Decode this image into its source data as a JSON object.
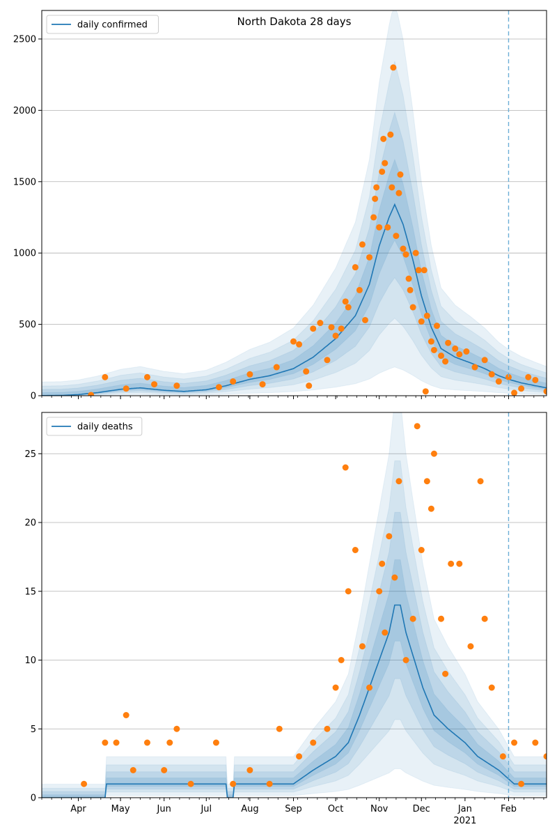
{
  "chart_data": [
    {
      "type": "line",
      "title": "North Dakota 28 days",
      "xlabel": "",
      "ylabel": "",
      "x_start": "2020-03-06",
      "x_end": "2021-02-28",
      "x_ticks": [
        {
          "label": "Apr",
          "date": "2020-04-01"
        },
        {
          "label": "May",
          "date": "2020-05-01"
        },
        {
          "label": "Jun",
          "date": "2020-06-01"
        },
        {
          "label": "Jul",
          "date": "2020-07-01"
        },
        {
          "label": "Aug",
          "date": "2020-08-01"
        },
        {
          "label": "Sep",
          "date": "2020-09-01"
        },
        {
          "label": "Oct",
          "date": "2020-10-01"
        },
        {
          "label": "Nov",
          "date": "2020-11-01"
        },
        {
          "label": "Dec",
          "date": "2020-12-01"
        },
        {
          "label": "Jan",
          "date": "2021-01-01",
          "sublabel": "2021"
        },
        {
          "label": "Feb",
          "date": "2021-02-01"
        }
      ],
      "y_ticks": [
        0,
        500,
        1000,
        1500,
        2000,
        2500
      ],
      "ylim": [
        0,
        2700
      ],
      "grid": "horizontal",
      "vline_date": "2021-02-01",
      "legend_position": "top-left",
      "series": [
        {
          "name": "daily confirmed",
          "color": "#1f77b4",
          "kind": "line"
        },
        {
          "kind": "scatter",
          "color": "#ff7f0e"
        }
      ],
      "curve": [
        [
          "2020-03-06",
          1
        ],
        [
          "2020-03-20",
          2
        ],
        [
          "2020-04-01",
          8
        ],
        [
          "2020-04-15",
          22
        ],
        [
          "2020-05-01",
          45
        ],
        [
          "2020-05-15",
          55
        ],
        [
          "2020-06-01",
          38
        ],
        [
          "2020-06-15",
          30
        ],
        [
          "2020-07-01",
          42
        ],
        [
          "2020-07-15",
          70
        ],
        [
          "2020-08-01",
          115
        ],
        [
          "2020-08-15",
          140
        ],
        [
          "2020-09-01",
          190
        ],
        [
          "2020-09-15",
          270
        ],
        [
          "2020-10-01",
          400
        ],
        [
          "2020-10-15",
          560
        ],
        [
          "2020-10-25",
          780
        ],
        [
          "2020-11-01",
          1050
        ],
        [
          "2020-11-08",
          1250
        ],
        [
          "2020-11-12",
          1340
        ],
        [
          "2020-11-18",
          1200
        ],
        [
          "2020-11-25",
          950
        ],
        [
          "2020-12-01",
          700
        ],
        [
          "2020-12-08",
          480
        ],
        [
          "2020-12-15",
          330
        ],
        [
          "2020-12-25",
          270
        ],
        [
          "2021-01-05",
          230
        ],
        [
          "2021-01-15",
          190
        ],
        [
          "2021-01-25",
          140
        ],
        [
          "2021-02-01",
          115
        ],
        [
          "2021-02-10",
          90
        ],
        [
          "2021-02-20",
          70
        ],
        [
          "2021-02-28",
          55
        ]
      ],
      "points": [
        [
          "2020-04-10",
          5
        ],
        [
          "2020-04-20",
          130
        ],
        [
          "2020-05-05",
          50
        ],
        [
          "2020-05-20",
          130
        ],
        [
          "2020-05-25",
          80
        ],
        [
          "2020-06-10",
          70
        ],
        [
          "2020-07-10",
          60
        ],
        [
          "2020-07-20",
          100
        ],
        [
          "2020-08-01",
          150
        ],
        [
          "2020-08-10",
          80
        ],
        [
          "2020-08-20",
          200
        ],
        [
          "2020-09-01",
          380
        ],
        [
          "2020-09-05",
          360
        ],
        [
          "2020-09-10",
          170
        ],
        [
          "2020-09-12",
          70
        ],
        [
          "2020-09-15",
          470
        ],
        [
          "2020-09-20",
          510
        ],
        [
          "2020-09-25",
          250
        ],
        [
          "2020-09-28",
          480
        ],
        [
          "2020-10-01",
          420
        ],
        [
          "2020-10-05",
          470
        ],
        [
          "2020-10-08",
          660
        ],
        [
          "2020-10-10",
          620
        ],
        [
          "2020-10-15",
          900
        ],
        [
          "2020-10-18",
          740
        ],
        [
          "2020-10-20",
          1060
        ],
        [
          "2020-10-22",
          530
        ],
        [
          "2020-10-25",
          970
        ],
        [
          "2020-10-28",
          1250
        ],
        [
          "2020-10-29",
          1380
        ],
        [
          "2020-10-30",
          1460
        ],
        [
          "2020-11-01",
          1180
        ],
        [
          "2020-11-03",
          1570
        ],
        [
          "2020-11-04",
          1800
        ],
        [
          "2020-11-05",
          1630
        ],
        [
          "2020-11-07",
          1180
        ],
        [
          "2020-11-09",
          1830
        ],
        [
          "2020-11-10",
          1460
        ],
        [
          "2020-11-11",
          2300
        ],
        [
          "2020-11-13",
          1120
        ],
        [
          "2020-11-15",
          1420
        ],
        [
          "2020-11-16",
          1550
        ],
        [
          "2020-11-18",
          1030
        ],
        [
          "2020-11-20",
          990
        ],
        [
          "2020-11-22",
          820
        ],
        [
          "2020-11-23",
          740
        ],
        [
          "2020-11-25",
          620
        ],
        [
          "2020-11-27",
          1000
        ],
        [
          "2020-11-29",
          880
        ],
        [
          "2020-12-01",
          520
        ],
        [
          "2020-12-03",
          880
        ],
        [
          "2020-12-04",
          30
        ],
        [
          "2020-12-05",
          560
        ],
        [
          "2020-12-08",
          380
        ],
        [
          "2020-12-10",
          320
        ],
        [
          "2020-12-12",
          490
        ],
        [
          "2020-12-15",
          280
        ],
        [
          "2020-12-18",
          240
        ],
        [
          "2020-12-20",
          370
        ],
        [
          "2020-12-25",
          330
        ],
        [
          "2020-12-28",
          290
        ],
        [
          "2021-01-02",
          310
        ],
        [
          "2021-01-08",
          200
        ],
        [
          "2021-01-15",
          250
        ],
        [
          "2021-01-20",
          150
        ],
        [
          "2021-01-25",
          100
        ],
        [
          "2021-02-01",
          130
        ],
        [
          "2021-02-05",
          20
        ],
        [
          "2021-02-10",
          50
        ],
        [
          "2021-02-15",
          130
        ],
        [
          "2021-02-20",
          110
        ],
        [
          "2021-02-28",
          30
        ]
      ]
    },
    {
      "type": "line",
      "title": "",
      "xlabel": "",
      "ylabel": "",
      "x_start": "2020-03-06",
      "x_end": "2021-02-28",
      "x_ticks": [
        {
          "label": "Apr",
          "date": "2020-04-01"
        },
        {
          "label": "May",
          "date": "2020-05-01"
        },
        {
          "label": "Jun",
          "date": "2020-06-01"
        },
        {
          "label": "Jul",
          "date": "2020-07-01"
        },
        {
          "label": "Aug",
          "date": "2020-08-01"
        },
        {
          "label": "Sep",
          "date": "2020-09-01"
        },
        {
          "label": "Oct",
          "date": "2020-10-01"
        },
        {
          "label": "Nov",
          "date": "2020-11-01"
        },
        {
          "label": "Dec",
          "date": "2020-12-01"
        },
        {
          "label": "Jan",
          "date": "2021-01-01",
          "sublabel": "2021"
        },
        {
          "label": "Feb",
          "date": "2021-02-01"
        }
      ],
      "y_ticks": [
        0,
        5,
        10,
        15,
        20,
        25
      ],
      "ylim": [
        0,
        28
      ],
      "grid": "horizontal",
      "vline_date": "2021-02-01",
      "legend_position": "top-left",
      "series": [
        {
          "name": "daily deaths",
          "color": "#1f77b4",
          "kind": "line"
        },
        {
          "kind": "scatter",
          "color": "#ff7f0e"
        }
      ],
      "curve": [
        [
          "2020-03-06",
          0
        ],
        [
          "2020-04-20",
          0
        ],
        [
          "2020-04-21",
          1
        ],
        [
          "2020-06-20",
          1
        ],
        [
          "2020-07-15",
          1
        ],
        [
          "2020-07-16",
          0
        ],
        [
          "2020-07-20",
          0
        ],
        [
          "2020-07-21",
          1
        ],
        [
          "2020-09-01",
          1
        ],
        [
          "2020-09-15",
          2
        ],
        [
          "2020-10-01",
          3
        ],
        [
          "2020-10-10",
          4
        ],
        [
          "2020-10-18",
          6
        ],
        [
          "2020-10-25",
          8
        ],
        [
          "2020-11-01",
          10
        ],
        [
          "2020-11-08",
          12
        ],
        [
          "2020-11-12",
          14
        ],
        [
          "2020-11-16",
          14
        ],
        [
          "2020-11-20",
          12
        ],
        [
          "2020-11-26",
          10
        ],
        [
          "2020-12-02",
          8
        ],
        [
          "2020-12-10",
          6
        ],
        [
          "2020-12-20",
          5
        ],
        [
          "2021-01-01",
          4
        ],
        [
          "2021-01-10",
          3
        ],
        [
          "2021-01-25",
          2
        ],
        [
          "2021-02-05",
          1
        ],
        [
          "2021-02-28",
          1
        ]
      ],
      "points": [
        [
          "2020-04-05",
          1
        ],
        [
          "2020-04-20",
          4
        ],
        [
          "2020-04-28",
          4
        ],
        [
          "2020-05-05",
          6
        ],
        [
          "2020-05-10",
          2
        ],
        [
          "2020-05-20",
          4
        ],
        [
          "2020-06-01",
          2
        ],
        [
          "2020-06-05",
          4
        ],
        [
          "2020-06-10",
          5
        ],
        [
          "2020-06-20",
          1
        ],
        [
          "2020-07-08",
          4
        ],
        [
          "2020-07-20",
          1
        ],
        [
          "2020-08-01",
          2
        ],
        [
          "2020-08-15",
          1
        ],
        [
          "2020-08-22",
          5
        ],
        [
          "2020-09-05",
          3
        ],
        [
          "2020-09-15",
          4
        ],
        [
          "2020-09-25",
          5
        ],
        [
          "2020-10-01",
          8
        ],
        [
          "2020-10-05",
          10
        ],
        [
          "2020-10-08",
          24
        ],
        [
          "2020-10-10",
          15
        ],
        [
          "2020-10-15",
          18
        ],
        [
          "2020-10-20",
          11
        ],
        [
          "2020-10-25",
          8
        ],
        [
          "2020-11-01",
          15
        ],
        [
          "2020-11-03",
          17
        ],
        [
          "2020-11-05",
          12
        ],
        [
          "2020-11-08",
          19
        ],
        [
          "2020-11-12",
          16
        ],
        [
          "2020-11-15",
          23
        ],
        [
          "2020-11-20",
          10
        ],
        [
          "2020-11-25",
          13
        ],
        [
          "2020-11-28",
          27
        ],
        [
          "2020-12-01",
          18
        ],
        [
          "2020-12-05",
          23
        ],
        [
          "2020-12-08",
          21
        ],
        [
          "2020-12-10",
          25
        ],
        [
          "2020-12-15",
          13
        ],
        [
          "2020-12-18",
          9
        ],
        [
          "2020-12-22",
          17
        ],
        [
          "2020-12-28",
          17
        ],
        [
          "2021-01-05",
          11
        ],
        [
          "2021-01-12",
          23
        ],
        [
          "2021-01-15",
          13
        ],
        [
          "2021-01-20",
          8
        ],
        [
          "2021-01-28",
          3
        ],
        [
          "2021-02-05",
          4
        ],
        [
          "2021-02-10",
          1
        ],
        [
          "2021-02-20",
          4
        ],
        [
          "2021-02-28",
          3
        ]
      ]
    }
  ]
}
